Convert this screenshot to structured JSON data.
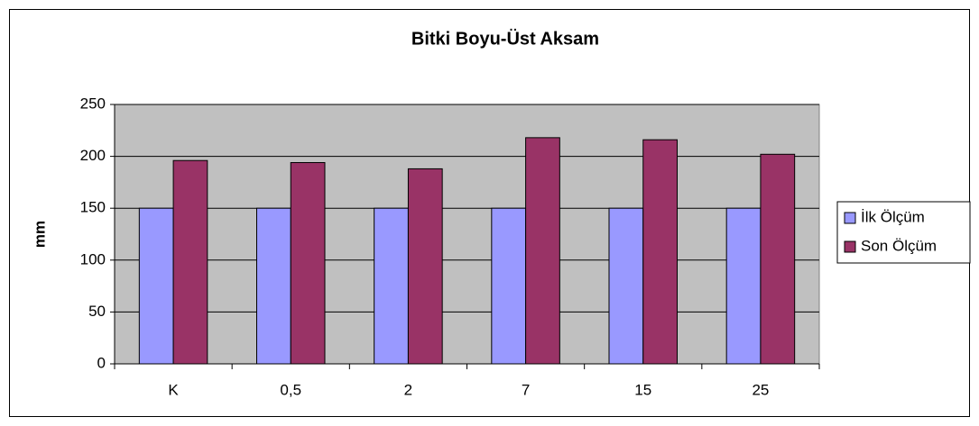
{
  "chart_data": {
    "type": "bar",
    "title": "Bitki Boyu-Üst Aksam",
    "y_label": "mm",
    "categories": [
      "K",
      "0,5",
      "2",
      "7",
      "15",
      "25"
    ],
    "series": [
      {
        "name": "İlk Ölçüm",
        "color": "#9999ff",
        "values": [
          150,
          150,
          150,
          150,
          150,
          150
        ]
      },
      {
        "name": "Son Ölçüm",
        "color": "#993366",
        "values": [
          196,
          194,
          188,
          218,
          216,
          202
        ]
      }
    ],
    "ylim": [
      0,
      250
    ],
    "yticks": [
      0,
      50,
      100,
      150,
      200,
      250
    ],
    "grid": true,
    "legend": "right",
    "plot_background": "#c0c0c0"
  }
}
